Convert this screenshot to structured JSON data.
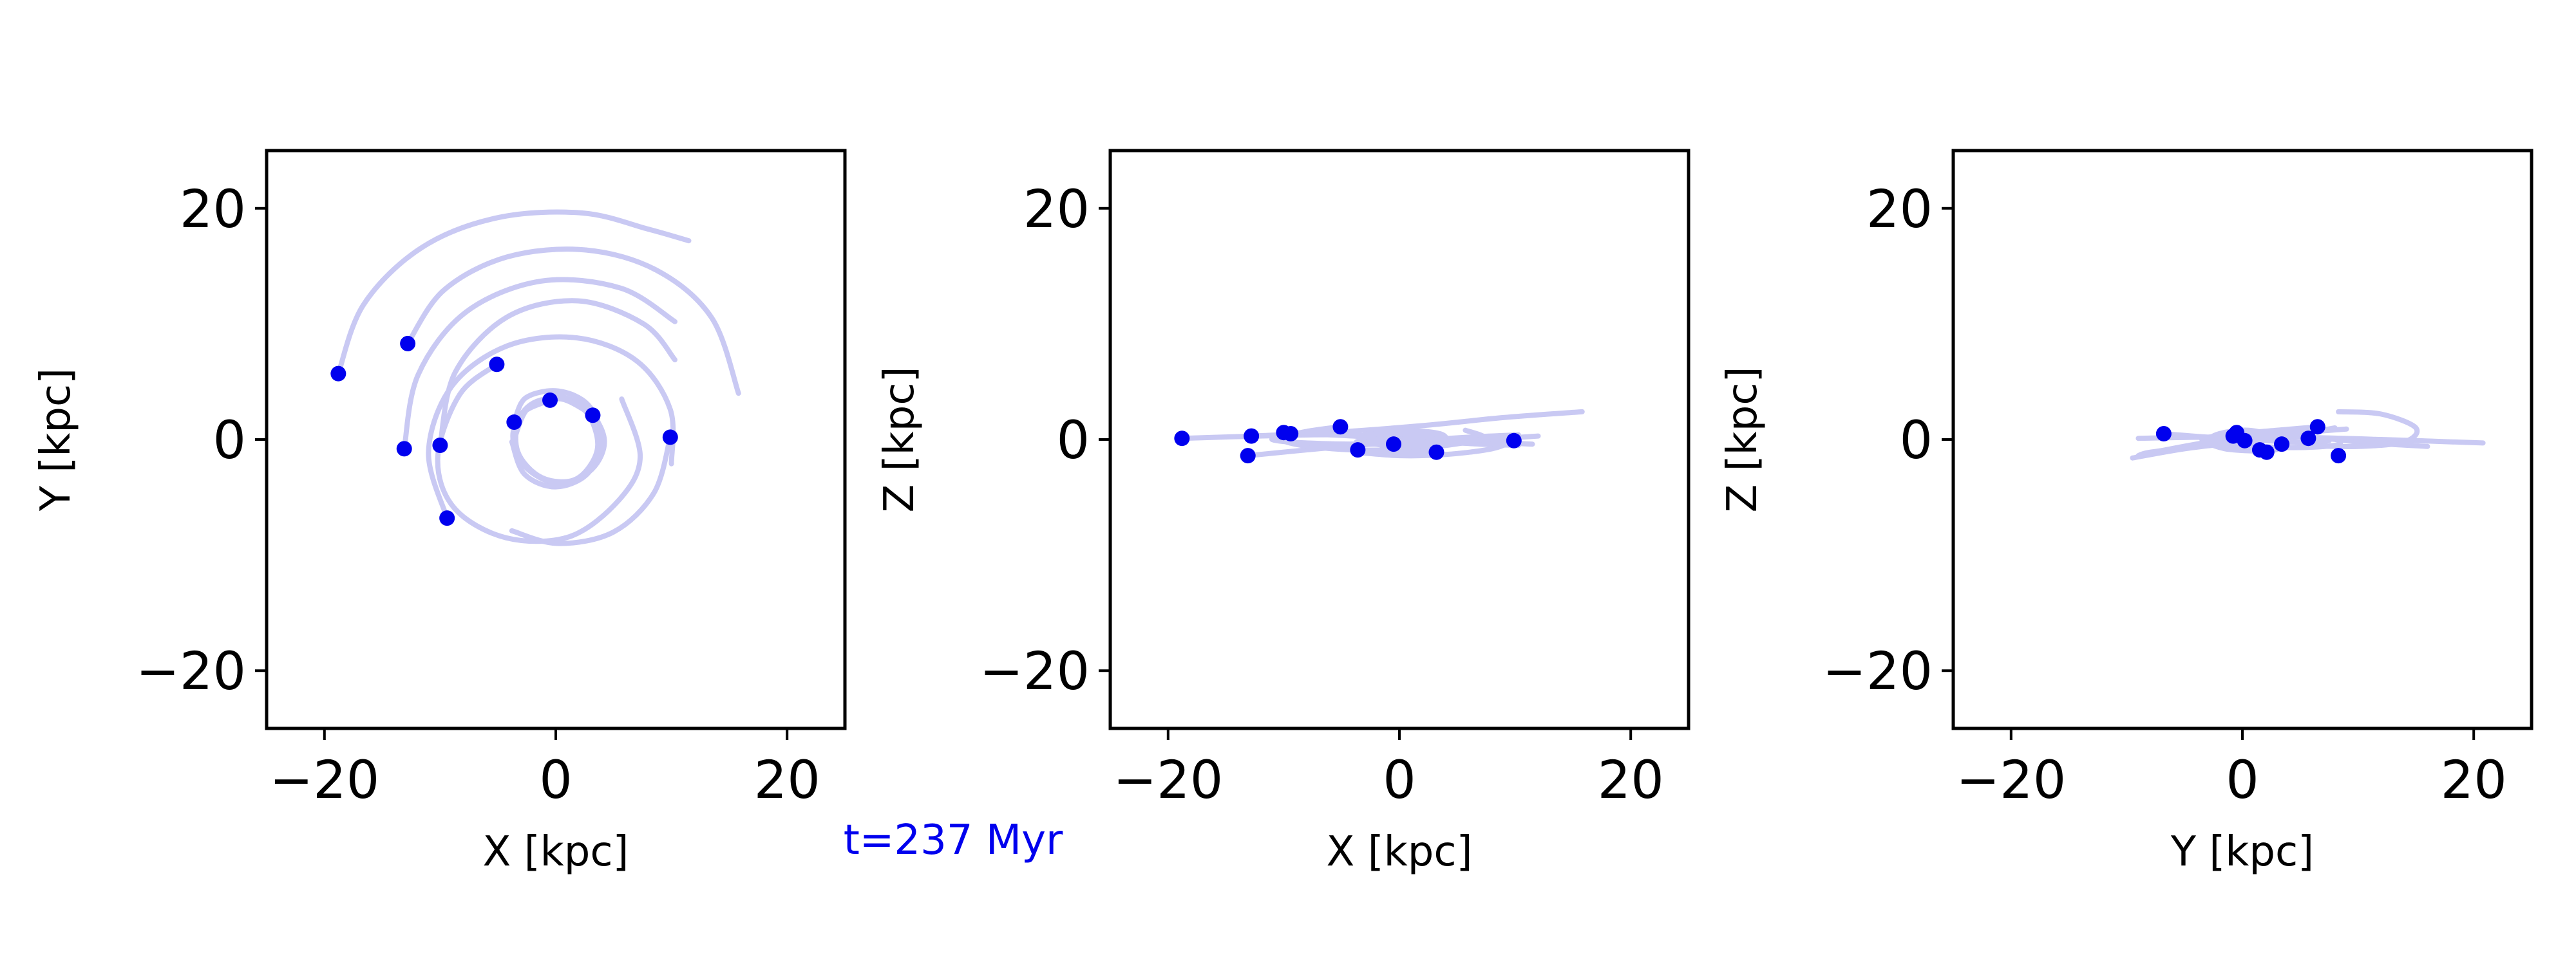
{
  "colors": {
    "accent": "#0000ee",
    "trail": "#c9c9f3",
    "axes": "#000000"
  },
  "time_label": "t=237 Myr",
  "chart_data": [
    {
      "type": "line",
      "title": "",
      "xlabel": "X [kpc]",
      "ylabel": "Y [kpc]",
      "xlim": [
        -25,
        25
      ],
      "ylim": [
        -25,
        25
      ],
      "xticks": [
        -20,
        0,
        20
      ],
      "yticks": [
        -20,
        0,
        20
      ],
      "xtick_labels": [
        "−20",
        "0",
        "20"
      ],
      "ytick_labels": [
        "−20",
        "0",
        "20"
      ],
      "grid": false,
      "series": [
        {
          "points": [
            [
              -18.8,
              5.7
            ],
            [
              -16.6,
              11.7
            ],
            [
              -11.6,
              16.6
            ],
            [
              -5.0,
              19.2
            ],
            [
              2.3,
              19.6
            ],
            [
              8.0,
              18.2
            ],
            [
              11.5,
              17.2
            ]
          ]
        },
        {
          "points": [
            [
              -12.8,
              8.3
            ],
            [
              -9.7,
              12.9
            ],
            [
              -4.2,
              15.8
            ],
            [
              2.6,
              16.4
            ],
            [
              8.8,
              14.6
            ],
            [
              13.5,
              10.5
            ],
            [
              15.8,
              4.0
            ]
          ]
        },
        {
          "points": [
            [
              -13.1,
              -0.8
            ],
            [
              -11.9,
              5.6
            ],
            [
              -7.8,
              11.0
            ],
            [
              -1.3,
              13.7
            ],
            [
              5.6,
              13.1
            ],
            [
              10.3,
              10.2
            ]
          ]
        },
        {
          "points": [
            [
              -10.0,
              -0.5
            ],
            [
              -8.7,
              5.8
            ],
            [
              -4.2,
              10.6
            ],
            [
              1.9,
              12.0
            ],
            [
              7.6,
              10.0
            ],
            [
              10.3,
              6.9
            ]
          ]
        },
        {
          "points": [
            [
              -5.1,
              6.5
            ],
            [
              -8.3,
              3.9
            ],
            [
              -10.2,
              -1.5
            ],
            [
              -8.8,
              -5.9
            ],
            [
              -4.3,
              -8.5
            ],
            [
              1.2,
              -8.4
            ],
            [
              5.5,
              -5.2
            ],
            [
              7.3,
              -1.5
            ],
            [
              5.7,
              3.5
            ]
          ]
        },
        {
          "points": [
            [
              -9.4,
              -6.8
            ],
            [
              -11.0,
              -1.1
            ],
            [
              -9.0,
              4.6
            ],
            [
              -4.2,
              8.1
            ],
            [
              1.8,
              8.8
            ],
            [
              7.0,
              6.8
            ],
            [
              9.9,
              2.6
            ],
            [
              10.0,
              -2.1
            ]
          ]
        },
        {
          "points": [
            [
              9.9,
              0.2
            ],
            [
              8.5,
              -4.6
            ],
            [
              5.0,
              -8.0
            ],
            [
              0.2,
              -9.0
            ],
            [
              -3.8,
              -7.9
            ]
          ]
        },
        {
          "points": [
            [
              3.2,
              2.1
            ],
            [
              0.5,
              3.5
            ],
            [
              -2.2,
              3.0
            ],
            [
              -3.7,
              0.5
            ],
            [
              -2.7,
              -2.3
            ],
            [
              0.2,
              -3.8
            ],
            [
              3.1,
              -2.6
            ],
            [
              4.2,
              0.0
            ],
            [
              2.6,
              2.8
            ],
            [
              -0.4,
              4.0
            ]
          ]
        },
        {
          "points": [
            [
              -0.5,
              3.4
            ],
            [
              -3.0,
              2.1
            ],
            [
              -3.3,
              -1.0
            ],
            [
              -1.2,
              -3.3
            ],
            [
              1.8,
              -3.4
            ],
            [
              3.6,
              -0.8
            ],
            [
              2.7,
              2.3
            ],
            [
              0.2,
              3.6
            ],
            [
              -2.4,
              2.7
            ],
            [
              -3.6,
              0.0
            ]
          ]
        },
        {
          "points": [
            [
              -3.6,
              1.5
            ],
            [
              -2.6,
              3.6
            ],
            [
              0.2,
              4.2
            ],
            [
              2.8,
              3.0
            ],
            [
              3.9,
              0.2
            ],
            [
              2.8,
              -2.9
            ],
            [
              0.0,
              -4.1
            ],
            [
              -2.7,
              -3.0
            ],
            [
              -3.8,
              -0.2
            ]
          ]
        }
      ],
      "markers": {
        "x": [
          -18.8,
          -12.8,
          -5.1,
          -0.5,
          3.2,
          -3.6,
          9.9,
          -13.1,
          -10.0,
          -9.4
        ],
        "y": [
          5.7,
          8.3,
          6.5,
          3.4,
          2.1,
          1.5,
          0.2,
          -0.8,
          -0.5,
          -6.8
        ]
      }
    },
    {
      "type": "line",
      "title": "",
      "xlabel": "X [kpc]",
      "ylabel": "Z [kpc]",
      "xlim": [
        -25,
        25
      ],
      "ylim": [
        -25,
        25
      ],
      "xticks": [
        -20,
        0,
        20
      ],
      "yticks": [
        -20,
        0,
        20
      ],
      "xtick_labels": [
        "−20",
        "0",
        "20"
      ],
      "ytick_labels": [
        "−20",
        "0",
        "20"
      ],
      "grid": false,
      "series": [
        {
          "points": [
            [
              -18.8,
              0.1
            ],
            [
              -12.0,
              0.3
            ],
            [
              -5.0,
              0.4
            ],
            [
              3.0,
              0.0
            ],
            [
              11.5,
              -0.4
            ]
          ]
        },
        {
          "points": [
            [
              -12.8,
              0.3
            ],
            [
              -6.0,
              0.6
            ],
            [
              2.0,
              1.2
            ],
            [
              9.0,
              1.9
            ],
            [
              15.8,
              2.4
            ]
          ]
        },
        {
          "points": [
            [
              -13.1,
              -1.4
            ],
            [
              -7.0,
              -0.8
            ],
            [
              0.0,
              -0.2
            ],
            [
              6.0,
              0.2
            ],
            [
              10.3,
              0.4
            ]
          ]
        },
        {
          "points": [
            [
              -10.0,
              0.6
            ],
            [
              -4.0,
              0.3
            ],
            [
              2.0,
              -0.1
            ],
            [
              7.0,
              -0.4
            ],
            [
              10.3,
              -0.5
            ]
          ]
        },
        {
          "points": [
            [
              -5.1,
              1.1
            ],
            [
              -8.0,
              0.7
            ],
            [
              -10.2,
              0.1
            ],
            [
              -8.5,
              -0.5
            ],
            [
              -4.0,
              -0.9
            ],
            [
              1.0,
              -0.8
            ],
            [
              5.5,
              -0.3
            ],
            [
              7.3,
              0.2
            ],
            [
              5.7,
              0.8
            ]
          ]
        },
        {
          "points": [
            [
              -9.4,
              0.5
            ],
            [
              -11.0,
              0.0
            ],
            [
              -8.0,
              -0.3
            ],
            [
              -2.0,
              -0.4
            ],
            [
              4.0,
              -0.2
            ],
            [
              9.0,
              0.1
            ],
            [
              12.0,
              0.3
            ]
          ]
        },
        {
          "points": [
            [
              9.9,
              -0.1
            ],
            [
              8.0,
              -0.8
            ],
            [
              4.0,
              -1.3
            ],
            [
              0.0,
              -1.4
            ],
            [
              -3.8,
              -1.1
            ]
          ]
        },
        {
          "points": [
            [
              3.2,
              -1.1
            ],
            [
              0.0,
              -0.7
            ],
            [
              -3.0,
              -0.2
            ],
            [
              -3.0,
              0.4
            ],
            [
              0.0,
              0.8
            ],
            [
              3.5,
              0.5
            ],
            [
              3.8,
              -0.3
            ],
            [
              1.0,
              -0.9
            ]
          ]
        },
        {
          "points": [
            [
              -0.5,
              -0.4
            ],
            [
              -3.0,
              -0.1
            ],
            [
              -3.3,
              0.3
            ],
            [
              -1.0,
              0.5
            ],
            [
              2.0,
              0.3
            ],
            [
              3.5,
              -0.1
            ],
            [
              2.0,
              -0.5
            ],
            [
              -1.0,
              -0.5
            ]
          ]
        },
        {
          "points": [
            [
              -3.6,
              -0.9
            ],
            [
              -2.0,
              -1.2
            ],
            [
              1.0,
              -1.1
            ],
            [
              3.5,
              -0.6
            ],
            [
              3.8,
              0.2
            ],
            [
              1.5,
              0.7
            ],
            [
              -2.0,
              0.5
            ],
            [
              -3.7,
              -0.2
            ]
          ]
        }
      ],
      "markers": {
        "x": [
          -18.8,
          -12.8,
          -5.1,
          -0.5,
          3.2,
          -3.6,
          9.9,
          -13.1,
          -10.0,
          -9.4
        ],
        "y": [
          0.1,
          0.3,
          1.1,
          -0.4,
          -1.1,
          -0.9,
          -0.1,
          -1.4,
          0.6,
          0.5
        ]
      }
    },
    {
      "type": "line",
      "title": "",
      "xlabel": "Y [kpc]",
      "ylabel": "Z [kpc]",
      "xlim": [
        -25,
        25
      ],
      "ylim": [
        -25,
        25
      ],
      "xticks": [
        -20,
        0,
        20
      ],
      "yticks": [
        -20,
        0,
        20
      ],
      "xtick_labels": [
        "−20",
        "0",
        "20"
      ],
      "ytick_labels": [
        "−20",
        "0",
        "20"
      ],
      "grid": false,
      "series": [
        {
          "points": [
            [
              -9.0,
              0.1
            ],
            [
              -3.0,
              0.2
            ],
            [
              4.0,
              0.2
            ],
            [
              12.0,
              0.0
            ],
            [
              20.8,
              -0.3
            ]
          ]
        },
        {
          "points": [
            [
              -9.5,
              -1.6
            ],
            [
              -5.0,
              -0.8
            ],
            [
              0.0,
              -0.2
            ],
            [
              5.0,
              0.5
            ],
            [
              8.0,
              1.0
            ]
          ]
        },
        {
          "points": [
            [
              -8.2,
              -1.2
            ],
            [
              -4.0,
              -0.4
            ],
            [
              0.0,
              0.2
            ],
            [
              5.0,
              0.6
            ],
            [
              9.0,
              0.9
            ]
          ]
        },
        {
          "points": [
            [
              -0.5,
              0.5
            ],
            [
              3.0,
              0.4
            ],
            [
              7.0,
              0.1
            ],
            [
              11.0,
              -0.3
            ],
            [
              16.0,
              -0.6
            ]
          ]
        },
        {
          "points": [
            [
              6.5,
              1.1
            ],
            [
              3.0,
              0.8
            ],
            [
              -1.5,
              0.4
            ],
            [
              -3.5,
              0.0
            ],
            [
              -1.0,
              -0.4
            ],
            [
              4.0,
              -0.7
            ],
            [
              8.0,
              -0.5
            ],
            [
              8.5,
              0.0
            ]
          ]
        },
        {
          "points": [
            [
              -6.8,
              0.5
            ],
            [
              -3.0,
              0.2
            ],
            [
              2.0,
              -0.1
            ],
            [
              6.0,
              -0.3
            ],
            [
              7.5,
              -0.1
            ]
          ]
        },
        {
          "points": [
            [
              0.2,
              -0.1
            ],
            [
              -4.0,
              -0.6
            ],
            [
              -8.0,
              -1.1
            ],
            [
              -9.0,
              -1.4
            ]
          ]
        },
        {
          "points": [
            [
              2.1,
              -1.1
            ],
            [
              3.5,
              -0.6
            ],
            [
              3.0,
              0.2
            ],
            [
              0.5,
              0.8
            ],
            [
              -2.0,
              0.5
            ],
            [
              -3.0,
              -0.2
            ],
            [
              -1.5,
              -0.8
            ],
            [
              1.0,
              -1.0
            ]
          ]
        },
        {
          "points": [
            [
              3.4,
              -0.4
            ],
            [
              3.0,
              0.1
            ],
            [
              0.5,
              0.4
            ],
            [
              -2.0,
              0.3
            ],
            [
              -3.0,
              -0.1
            ],
            [
              -1.5,
              -0.5
            ],
            [
              1.5,
              -0.5
            ]
          ]
        },
        {
          "points": [
            [
              8.3,
              2.4
            ],
            [
              12.0,
              2.2
            ],
            [
              15.0,
              1.0
            ],
            [
              14.0,
              -0.2
            ],
            [
              10.0,
              -0.6
            ],
            [
              5.0,
              -0.5
            ]
          ]
        }
      ],
      "markers": {
        "x": [
          5.7,
          8.3,
          6.5,
          3.4,
          2.1,
          1.5,
          0.2,
          -0.8,
          -0.5,
          -6.8
        ],
        "y": [
          0.1,
          -1.4,
          1.1,
          -0.4,
          -1.1,
          -0.9,
          -0.1,
          0.3,
          0.6,
          0.5
        ]
      }
    }
  ]
}
